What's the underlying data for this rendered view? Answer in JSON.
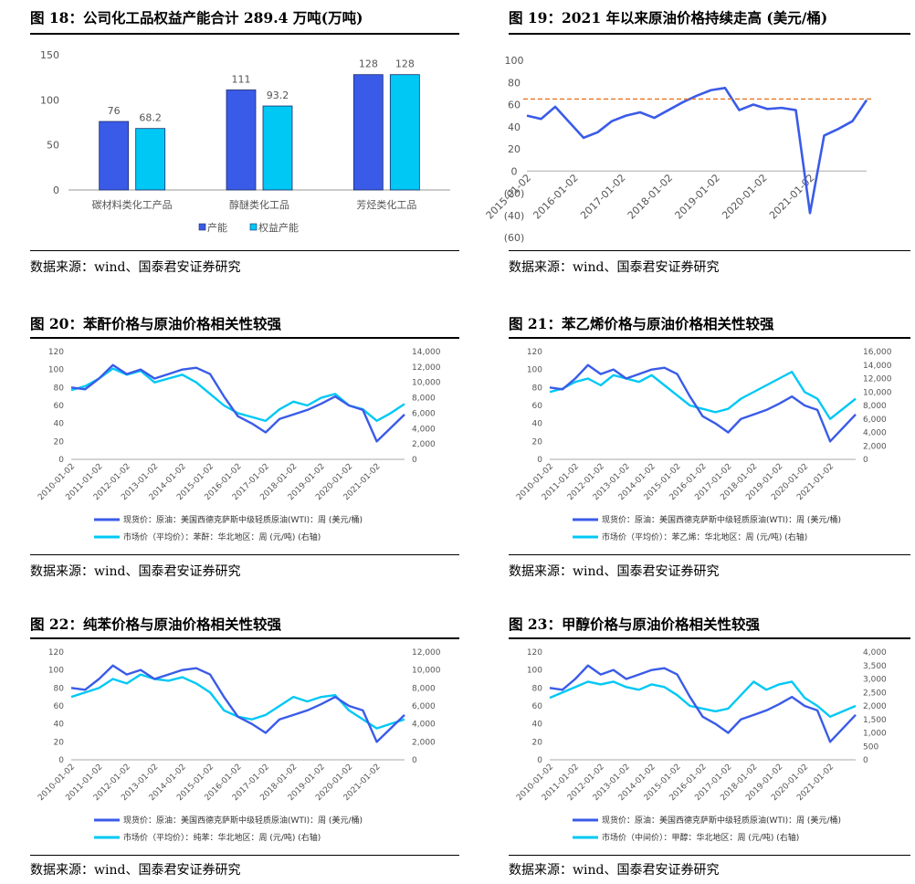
{
  "colors": {
    "primary": "#3a5be8",
    "secondary": "#00c8f5",
    "ref_line": "#e8731e",
    "neg": "#cc0000"
  },
  "figures": [
    {
      "title": "图 18：公司化工品权益产能合计 289.4 万吨(万吨)",
      "source": "数据来源：wind、国泰君安证券研究"
    },
    {
      "title": "图 19：2021 年以来原油价格持续走高 (美元/桶)",
      "source": "数据来源：wind、国泰君安证券研究"
    },
    {
      "title": "图 20：苯酐价格与原油价格相关性较强",
      "source": "数据来源：wind、国泰君安证券研究"
    },
    {
      "title": "图 21：苯乙烯价格与原油价格相关性较强",
      "source": "数据来源：wind、国泰君安证券研究"
    },
    {
      "title": "图 22：纯苯价格与原油价格相关性较强",
      "source": "数据来源：wind、国泰君安证券研究"
    },
    {
      "title": "图 23：甲醇价格与原油价格相关性较强",
      "source": "数据来源：wind、国泰君安证券研究"
    }
  ],
  "chart_data": [
    {
      "type": "bar",
      "categories": [
        "碳材料类化工产品",
        "醇醚类化工品",
        "芳烃类化工品"
      ],
      "series": [
        {
          "name": "产能",
          "values": [
            76,
            111,
            128
          ]
        },
        {
          "name": "权益产能",
          "values": [
            68.2,
            93.2,
            128
          ]
        }
      ],
      "ylim": [
        0,
        150
      ],
      "yticks": [
        0,
        50,
        100,
        150
      ],
      "legend": "bottom"
    },
    {
      "type": "line",
      "ylim": [
        -60,
        100
      ],
      "yticks": [
        100,
        80,
        60,
        40,
        20,
        0,
        "(20)",
        "(40)",
        "(60)"
      ],
      "xticks": [
        "2015-01-02",
        "2016-01-02",
        "2017-01-02",
        "2018-01-02",
        "2019-01-02",
        "2020-01-02",
        "2021-01-02"
      ],
      "reference_line": 65,
      "series": [
        {
          "values": [
            50,
            47,
            58,
            44,
            30,
            35,
            45,
            50,
            53,
            48,
            55,
            62,
            68,
            73,
            75,
            55,
            60,
            56,
            57,
            55,
            -38,
            32,
            38,
            45,
            64
          ]
        }
      ]
    },
    {
      "type": "line",
      "ylim_left": [
        0,
        120
      ],
      "ylim_right": [
        0,
        14000
      ],
      "yticks_left": [
        0,
        20,
        40,
        60,
        80,
        100,
        120
      ],
      "yticks_right": [
        "0",
        "2,000",
        "4,000",
        "6,000",
        "8,000",
        "10,000",
        "12,000",
        "14,000"
      ],
      "xticks": [
        "2010-01-02",
        "2011-01-02",
        "2012-01-02",
        "2013-01-02",
        "2014-01-02",
        "2015-01-02",
        "2016-01-02",
        "2017-01-02",
        "2018-01-02",
        "2019-01-02",
        "2020-01-02",
        "2021-01-02"
      ],
      "series": [
        {
          "name": "现货价：原油：美国西德克萨斯中级轻质原油(WTI)：周 (美元/桶)",
          "values": [
            80,
            78,
            90,
            105,
            95,
            100,
            90,
            95,
            100,
            102,
            95,
            70,
            48,
            40,
            30,
            45,
            50,
            55,
            62,
            70,
            60,
            55,
            20,
            35,
            50
          ]
        },
        {
          "name": "市场价（平均价）：苯酐：华北地区：周 (元/吨) (右轴)",
          "values": [
            9000,
            9500,
            10500,
            11800,
            11000,
            11500,
            10000,
            10500,
            11000,
            10000,
            8500,
            7000,
            6000,
            5500,
            5000,
            6500,
            7500,
            7000,
            8000,
            8500,
            7000,
            6500,
            5000,
            6000,
            7200
          ]
        }
      ]
    },
    {
      "type": "line",
      "ylim_left": [
        0,
        120
      ],
      "ylim_right": [
        0,
        16000
      ],
      "yticks_left": [
        0,
        20,
        40,
        60,
        80,
        100,
        120
      ],
      "yticks_right": [
        "0",
        "2,000",
        "4,000",
        "6,000",
        "8,000",
        "10,000",
        "12,000",
        "14,000",
        "16,000"
      ],
      "xticks": [
        "2010-01-02",
        "2011-01-02",
        "2012-01-02",
        "2013-01-02",
        "2014-01-02",
        "2015-01-02",
        "2016-01-02",
        "2017-01-02",
        "2018-01-02",
        "2019-01-02",
        "2020-01-02",
        "2021-01-02"
      ],
      "series": [
        {
          "name": "现货价：原油：美国西德克萨斯中级轻质原油(WTI)：周 (美元/桶)",
          "values": [
            80,
            78,
            90,
            105,
            95,
            100,
            90,
            95,
            100,
            102,
            95,
            70,
            48,
            40,
            30,
            45,
            50,
            55,
            62,
            70,
            60,
            55,
            20,
            35,
            50
          ]
        },
        {
          "name": "市场价（平均价）：苯乙烯：华北地区：周 (元/吨) (右轴)",
          "values": [
            10000,
            10500,
            11500,
            12000,
            11000,
            12500,
            12000,
            11500,
            12500,
            11000,
            9500,
            8000,
            7500,
            7000,
            7500,
            9000,
            10000,
            11000,
            12000,
            13000,
            10000,
            9000,
            6000,
            7500,
            9000
          ]
        }
      ]
    },
    {
      "type": "line",
      "ylim_left": [
        0,
        120
      ],
      "ylim_right": [
        0,
        12000
      ],
      "yticks_left": [
        0,
        20,
        40,
        60,
        80,
        100,
        120
      ],
      "yticks_right": [
        "0",
        "2,000",
        "4,000",
        "6,000",
        "8,000",
        "10,000",
        "12,000"
      ],
      "xticks": [
        "2010-01-02",
        "2011-01-02",
        "2012-01-02",
        "2013-01-02",
        "2014-01-02",
        "2015-01-02",
        "2016-01-02",
        "2017-01-02",
        "2018-01-02",
        "2019-01-02",
        "2020-01-02",
        "2021-01-02"
      ],
      "series": [
        {
          "name": "现货价：原油：美国西德克萨斯中级轻质原油(WTI)：周 (美元/桶)",
          "values": [
            80,
            78,
            90,
            105,
            95,
            100,
            90,
            95,
            100,
            102,
            95,
            70,
            48,
            40,
            30,
            45,
            50,
            55,
            62,
            70,
            60,
            55,
            20,
            35,
            50
          ]
        },
        {
          "name": "市场价（平均价）：纯苯：华北地区：周 (元/吨) (右轴)",
          "values": [
            7000,
            7500,
            8000,
            9000,
            8500,
            9500,
            9000,
            8800,
            9200,
            8500,
            7500,
            5500,
            4800,
            4500,
            5000,
            6000,
            7000,
            6500,
            7000,
            7200,
            5500,
            4500,
            3500,
            4000,
            4500
          ]
        }
      ]
    },
    {
      "type": "line",
      "ylim_left": [
        0,
        120
      ],
      "ylim_right": [
        0,
        4000
      ],
      "yticks_left": [
        0,
        20,
        40,
        60,
        80,
        100,
        120
      ],
      "yticks_right": [
        "0",
        "500",
        "1,000",
        "1,500",
        "2,000",
        "2,500",
        "3,000",
        "3,500",
        "4,000"
      ],
      "xticks": [
        "2010-01-02",
        "2011-01-02",
        "2012-01-02",
        "2013-01-02",
        "2014-01-02",
        "2015-01-02",
        "2016-01-02",
        "2017-01-02",
        "2018-01-02",
        "2019-01-02",
        "2020-01-02",
        "2021-01-02"
      ],
      "series": [
        {
          "name": "现货价：原油：美国西德克萨斯中级轻质原油(WTI)：周 (美元/桶)",
          "values": [
            80,
            78,
            90,
            105,
            95,
            100,
            90,
            95,
            100,
            102,
            95,
            70,
            48,
            40,
            30,
            45,
            50,
            55,
            62,
            70,
            60,
            55,
            20,
            35,
            50
          ]
        },
        {
          "name": "市场价（中间价）：甲醇：华北地区：周 (元/吨) (右轴)",
          "values": [
            2300,
            2500,
            2700,
            2900,
            2800,
            2900,
            2700,
            2600,
            2800,
            2700,
            2400,
            2000,
            1900,
            1800,
            1900,
            2400,
            2900,
            2600,
            2800,
            2900,
            2300,
            2000,
            1600,
            1800,
            2000
          ]
        }
      ]
    }
  ]
}
